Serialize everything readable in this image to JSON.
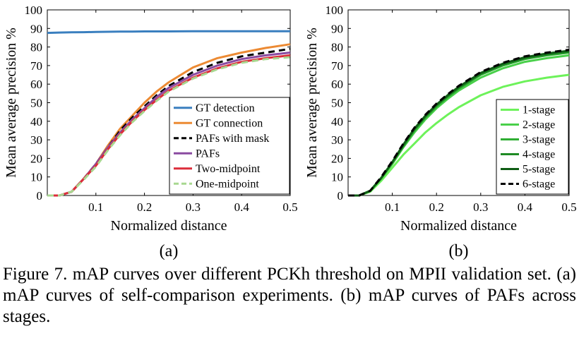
{
  "chart_data": [
    {
      "type": "line",
      "panel_label": "(a)",
      "xlabel": "Normalized distance",
      "ylabel": "Mean average precision %",
      "xlim": [
        0,
        0.5
      ],
      "ylim": [
        0,
        100
      ],
      "xticks": [
        0.1,
        0.2,
        0.3,
        0.4,
        0.5
      ],
      "xtick_labels": [
        "0.1",
        "0.2",
        "0.3",
        "0.4",
        "0.5"
      ],
      "yticks": [
        0,
        10,
        20,
        30,
        40,
        50,
        60,
        70,
        80,
        90,
        100
      ],
      "ytick_labels": [
        "0",
        "10",
        "20",
        "30",
        "40",
        "50",
        "60",
        "70",
        "80",
        "90",
        "100"
      ],
      "grid": false,
      "legend_position": "bottom-right",
      "x": [
        0,
        0.025,
        0.05,
        0.075,
        0.1,
        0.125,
        0.15,
        0.175,
        0.2,
        0.225,
        0.25,
        0.3,
        0.35,
        0.4,
        0.45,
        0.5
      ],
      "series": [
        {
          "name": "GT detection",
          "color": "#3a7fbf",
          "dash": "solid",
          "values": [
            87.6,
            87.8,
            87.9,
            88.0,
            88.1,
            88.2,
            88.3,
            88.3,
            88.4,
            88.4,
            88.4,
            88.5,
            88.5,
            88.5,
            88.5,
            88.5
          ]
        },
        {
          "name": "GT connection",
          "color": "#ec8a33",
          "dash": "solid",
          "values": [
            0,
            0,
            2,
            9,
            17,
            27,
            36,
            43,
            50,
            56,
            61,
            69,
            74,
            77,
            79.5,
            81.5
          ]
        },
        {
          "name": "PAFs with mask",
          "color": "#000000",
          "dash": "dashed",
          "values": [
            0,
            0,
            2,
            9,
            17,
            26,
            35,
            42,
            48,
            54,
            59,
            66.5,
            71.5,
            75,
            77,
            79
          ]
        },
        {
          "name": "PAFs",
          "color": "#8a4aa0",
          "dash": "solid",
          "values": [
            0,
            0,
            2,
            9,
            17,
            26,
            34,
            41,
            47,
            53,
            58,
            65,
            70,
            73.5,
            75.5,
            77
          ]
        },
        {
          "name": "Two-midpoint",
          "color": "#dc2d3a",
          "dash": "solid",
          "values": [
            0,
            0,
            2,
            9,
            16,
            25,
            33,
            40,
            46,
            51.5,
            56.5,
            63.5,
            68.5,
            72,
            74,
            75.5
          ]
        },
        {
          "name": "One-midpoint",
          "color": "#a8d890",
          "dash": "dashed",
          "values": [
            0,
            0,
            2,
            8.5,
            15.5,
            24.5,
            32.5,
            39.5,
            45.5,
            51,
            56,
            63,
            68,
            71.5,
            73.5,
            74.5
          ]
        }
      ]
    },
    {
      "type": "line",
      "panel_label": "(b)",
      "xlabel": "Normalized distance",
      "ylabel": "Mean average precision %",
      "xlim": [
        0,
        0.5
      ],
      "ylim": [
        0,
        100
      ],
      "xticks": [
        0.1,
        0.2,
        0.3,
        0.4,
        0.5
      ],
      "xtick_labels": [
        "0.1",
        "0.2",
        "0.3",
        "0.4",
        "0.5"
      ],
      "yticks": [
        0,
        10,
        20,
        30,
        40,
        50,
        60,
        70,
        80,
        90,
        100
      ],
      "ytick_labels": [
        "0",
        "10",
        "20",
        "30",
        "40",
        "50",
        "60",
        "70",
        "80",
        "90",
        "100"
      ],
      "grid": false,
      "legend_position": "bottom-right",
      "x": [
        0,
        0.025,
        0.05,
        0.075,
        0.1,
        0.125,
        0.15,
        0.175,
        0.2,
        0.225,
        0.25,
        0.3,
        0.35,
        0.4,
        0.45,
        0.5
      ],
      "series": [
        {
          "name": "1-stage",
          "color": "#6df25a",
          "dash": "solid",
          "values": [
            0,
            0,
            2,
            8,
            15,
            22,
            28,
            34,
            39,
            43.5,
            47.5,
            54,
            58.5,
            61.5,
            63.5,
            65
          ]
        },
        {
          "name": "2-stage",
          "color": "#49d04a",
          "dash": "solid",
          "values": [
            0,
            0,
            2.5,
            9,
            17,
            26,
            34,
            41,
            47,
            52,
            56.5,
            63.5,
            68.5,
            72,
            74,
            75.5
          ]
        },
        {
          "name": "3-stage",
          "color": "#2fae33",
          "dash": "solid",
          "values": [
            0,
            0,
            2.5,
            9.5,
            17.5,
            26.5,
            35,
            42,
            48,
            53,
            57.5,
            65,
            70,
            73.5,
            75.5,
            77
          ]
        },
        {
          "name": "4-stage",
          "color": "#1e8a24",
          "dash": "solid",
          "values": [
            0,
            0,
            2.5,
            9.5,
            18,
            27,
            35.5,
            42.5,
            48.5,
            53.5,
            58,
            65.5,
            70.5,
            74,
            76,
            77.5
          ]
        },
        {
          "name": "5-stage",
          "color": "#0f5c15",
          "dash": "solid",
          "values": [
            0,
            0,
            2.5,
            9.5,
            18,
            27.5,
            36,
            43,
            49,
            54,
            58.5,
            66,
            71,
            74.5,
            76.5,
            78
          ]
        },
        {
          "name": "6-stage",
          "color": "#000000",
          "dash": "dashed",
          "values": [
            0,
            0,
            2.5,
            10,
            18.5,
            28,
            36.5,
            43.5,
            49.5,
            54.5,
            59,
            66.5,
            71.5,
            75,
            77,
            78.5
          ]
        }
      ]
    }
  ],
  "caption": {
    "text": "Figure 7. mAP curves over different PCKh threshold on MPII validation set. (a) mAP curves of self-comparison experiments. (b) mAP curves of PAFs across stages."
  }
}
